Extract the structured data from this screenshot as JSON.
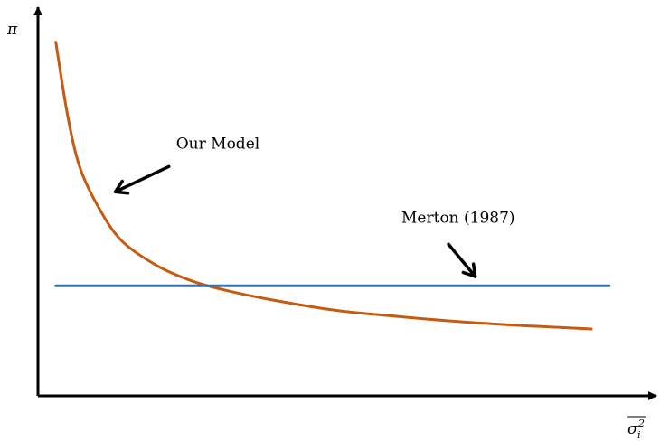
{
  "chart_data": {
    "type": "line",
    "title": "",
    "xlabel": "σᵢ²",
    "ylabel": "π",
    "xlim": [
      0,
      10
    ],
    "ylim": [
      0,
      10
    ],
    "ticks": "none",
    "grid": false,
    "legend": "none",
    "series": [
      {
        "name": "Our Model",
        "color": "#c55a11",
        "x": [
          0.3,
          0.5,
          0.7,
          1.0,
          1.4,
          2.0,
          2.6,
          3.2,
          4.0,
          5.0,
          6.0,
          7.0,
          8.0,
          8.8,
          9.3
        ],
        "y": [
          9.1,
          7.2,
          5.9,
          4.9,
          4.0,
          3.35,
          2.95,
          2.7,
          2.45,
          2.2,
          2.05,
          1.92,
          1.82,
          1.76,
          1.72
        ]
      },
      {
        "name": "Merton (1987)",
        "color": "#2e75b6",
        "x": [
          0.3,
          9.6
        ],
        "y": [
          2.83,
          2.83
        ]
      }
    ],
    "annotations": [
      {
        "text": "Our Model",
        "arrow_from": [
          2.2,
          5.9
        ],
        "arrow_to": [
          1.3,
          5.25
        ]
      },
      {
        "text": "Merton (1987)",
        "arrow_from": [
          6.9,
          3.9
        ],
        "arrow_to": [
          7.35,
          3.07
        ]
      }
    ]
  }
}
